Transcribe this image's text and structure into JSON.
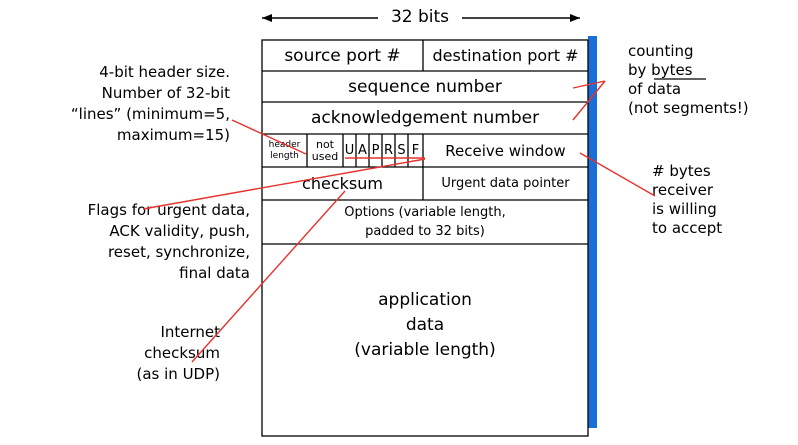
{
  "width_label": "32 bits",
  "segment": {
    "source_port": "source port #",
    "dest_port": "destination port #",
    "sequence_number": "sequence number",
    "ack_number": "acknowledgement number",
    "header_length": [
      "header",
      "length"
    ],
    "not_used": [
      "not",
      "used"
    ],
    "flags": [
      "U",
      "A",
      "P",
      "R",
      "S",
      "F"
    ],
    "receive_window": "Receive window",
    "checksum": "checksum",
    "urgent_pointer": "Urgent data pointer",
    "options": [
      "Options (variable length,",
      "padded to 32 bits)"
    ],
    "app_data": [
      "application",
      "data",
      "(variable length)"
    ]
  },
  "annotations": {
    "header_size": [
      "4-bit header size.",
      "Number of 32-bit",
      "“lines” (minimum=5,",
      "maximum=15)"
    ],
    "flags": [
      "Flags for urgent data,",
      "ACK validity, push,",
      "reset, synchronize,",
      "final data"
    ],
    "internet_checksum": [
      "Internet",
      "checksum",
      "(as in UDP)"
    ],
    "counting": [
      "counting",
      "by bytes",
      "of data",
      "(not segments!)"
    ],
    "receiver_bytes": [
      "# bytes",
      "receiver",
      "is willing",
      "to accept"
    ]
  },
  "colors": {
    "annotation_line": "#e8322d",
    "shadow": "#1a6fd6",
    "border": "#000000"
  }
}
